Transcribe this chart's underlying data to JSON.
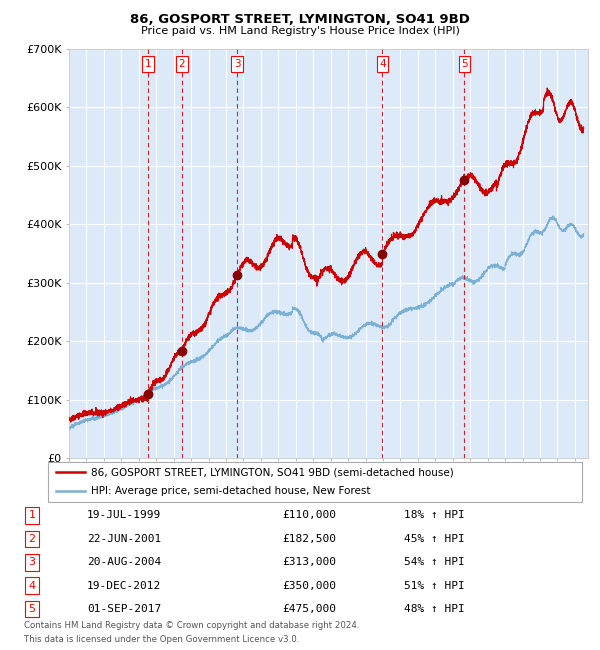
{
  "title": "86, GOSPORT STREET, LYMINGTON, SO41 9BD",
  "subtitle": "Price paid vs. HM Land Registry's House Price Index (HPI)",
  "legend_line1": "86, GOSPORT STREET, LYMINGTON, SO41 9BD (semi-detached house)",
  "legend_line2": "HPI: Average price, semi-detached house, New Forest",
  "footer_line1": "Contains HM Land Registry data © Crown copyright and database right 2024.",
  "footer_line2": "This data is licensed under the Open Government Licence v3.0.",
  "sales": [
    {
      "num": 1,
      "date_decimal": 1999.54,
      "price": 110000
    },
    {
      "num": 2,
      "date_decimal": 2001.47,
      "price": 182500
    },
    {
      "num": 3,
      "date_decimal": 2004.64,
      "price": 313000
    },
    {
      "num": 4,
      "date_decimal": 2012.97,
      "price": 350000
    },
    {
      "num": 5,
      "date_decimal": 2017.67,
      "price": 475000
    }
  ],
  "table_rows": [
    [
      "1",
      "19-JUL-1999",
      "£110,000",
      "18% ↑ HPI"
    ],
    [
      "2",
      "22-JUN-2001",
      "£182,500",
      "45% ↑ HPI"
    ],
    [
      "3",
      "20-AUG-2004",
      "£313,000",
      "54% ↑ HPI"
    ],
    [
      "4",
      "19-DEC-2012",
      "£350,000",
      "51% ↑ HPI"
    ],
    [
      "5",
      "01-SEP-2017",
      "£475,000",
      "48% ↑ HPI"
    ]
  ],
  "plot_bg": "#dce9f8",
  "grid_color": "#ffffff",
  "red_color": "#cc0000",
  "blue_color": "#7ab0d4",
  "marker_color": "#880000",
  "ylim": [
    0,
    700000
  ],
  "yticks": [
    0,
    100000,
    200000,
    300000,
    400000,
    500000,
    600000,
    700000
  ],
  "ytick_labels": [
    "£0",
    "£100K",
    "£200K",
    "£300K",
    "£400K",
    "£500K",
    "£600K",
    "£700K"
  ],
  "xlim_start": 1995.0,
  "xlim_end": 2024.75
}
